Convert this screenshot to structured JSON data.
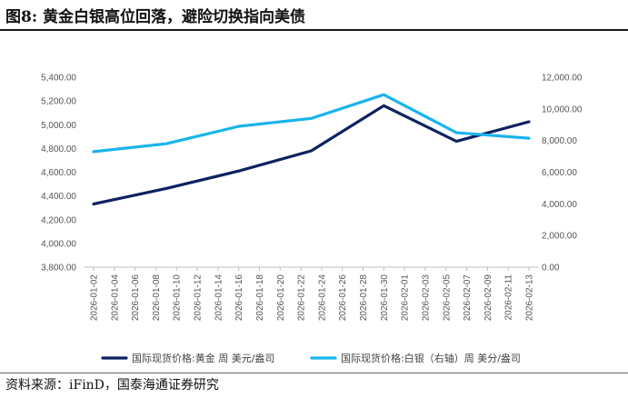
{
  "figure": {
    "title": "图8:  黄金白银高位回落，避险切换指向美债",
    "source": "资料来源：iFinD，国泰海通证券研究"
  },
  "chart_data": {
    "type": "line",
    "x": [
      "2026-01-02",
      "2026-01-04",
      "2026-01-06",
      "2026-01-08",
      "2026-01-10",
      "2026-01-12",
      "2026-01-14",
      "2026-01-16",
      "2026-01-18",
      "2026-01-20",
      "2026-01-22",
      "2026-01-24",
      "2026-01-26",
      "2026-01-28",
      "2026-01-30",
      "2026-02-01",
      "2026-02-03",
      "2026-02-05",
      "2026-02-07",
      "2026-02-09",
      "2026-02-11",
      "2026-02-13"
    ],
    "series": [
      {
        "name": "国际现货价格:黄金 周 美元/盎司",
        "axis": "left",
        "color": "#0d2260",
        "points": [
          {
            "x": "2026-01-02",
            "y": 4332
          },
          {
            "x": "2026-01-09",
            "y": 4463
          },
          {
            "x": "2026-01-16",
            "y": 4610
          },
          {
            "x": "2026-01-23",
            "y": 4780
          },
          {
            "x": "2026-01-30",
            "y": 5160
          },
          {
            "x": "2026-02-06",
            "y": 4860
          },
          {
            "x": "2026-02-13",
            "y": 5025
          }
        ]
      },
      {
        "name": "国际现货价格:白银（右轴）周 美分/盎司",
        "axis": "right",
        "color": "#18b4ec",
        "points": [
          {
            "x": "2026-01-02",
            "y": 7300
          },
          {
            "x": "2026-01-09",
            "y": 7800
          },
          {
            "x": "2026-01-16",
            "y": 8900
          },
          {
            "x": "2026-01-23",
            "y": 9400
          },
          {
            "x": "2026-01-30",
            "y": 10900
          },
          {
            "x": "2026-02-06",
            "y": 8500
          },
          {
            "x": "2026-02-13",
            "y": 8150
          }
        ]
      }
    ],
    "y_left": {
      "ylim": [
        3800,
        5400
      ],
      "ticks": [
        "3,800.00",
        "4,000.00",
        "4,200.00",
        "4,400.00",
        "4,600.00",
        "4,800.00",
        "5,000.00",
        "5,200.00",
        "5,400.00"
      ]
    },
    "y_right": {
      "ylim": [
        0,
        12000
      ],
      "ticks": [
        "0.00",
        "2,000.00",
        "4,000.00",
        "6,000.00",
        "8,000.00",
        "10,000.00",
        "12,000.00"
      ]
    },
    "grid": false,
    "legend_position": "bottom"
  }
}
